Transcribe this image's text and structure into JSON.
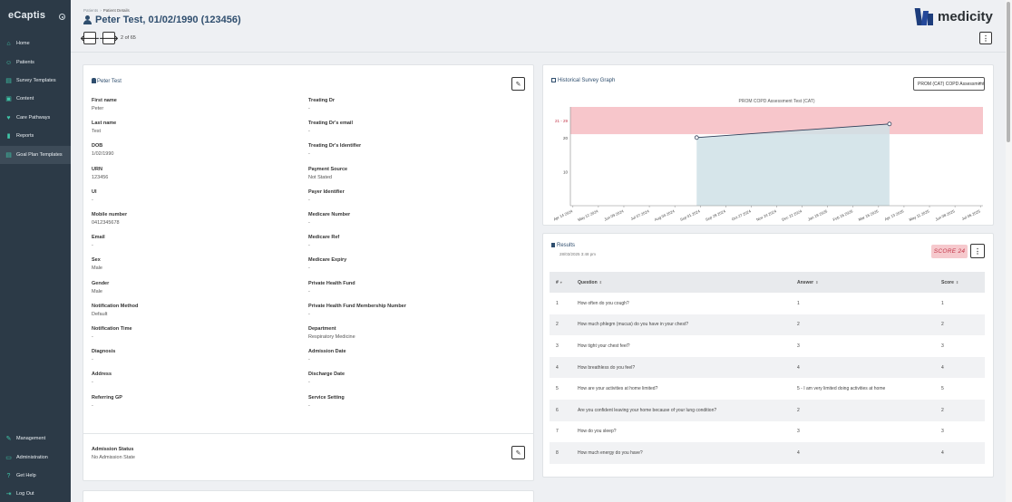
{
  "sidebar": {
    "brand": "eCaptis",
    "items": [
      {
        "label": "Home",
        "icon": "home-icon",
        "glyph": "⌂"
      },
      {
        "label": "Patients",
        "icon": "users-icon",
        "glyph": "☺"
      },
      {
        "label": "Survey Templates",
        "icon": "document-icon",
        "glyph": "▤"
      },
      {
        "label": "Content",
        "icon": "content-icon",
        "glyph": "▣"
      },
      {
        "label": "Care Pathways",
        "icon": "heart-icon",
        "glyph": "♥"
      },
      {
        "label": "Reports",
        "icon": "bar-chart-icon",
        "glyph": "▮"
      },
      {
        "label": "Goal Plan Templates",
        "icon": "goal-plan-icon",
        "glyph": "▤"
      },
      {
        "label": "Management",
        "icon": "wrench-icon",
        "glyph": "✎"
      },
      {
        "label": "Administration",
        "icon": "admin-icon",
        "glyph": "▭"
      },
      {
        "label": "Get Help",
        "icon": "help-icon",
        "glyph": "?"
      },
      {
        "label": "Log Out",
        "icon": "logout-icon",
        "glyph": "⇥"
      }
    ]
  },
  "header": {
    "breadcrumb": [
      "Patients",
      "Patient Details"
    ],
    "title": "Peter Test, 01/02/1990 (123456)",
    "pager": "2 of 65",
    "prev_glyph": "🡐",
    "next_glyph": "🡒",
    "logo_text": "medicity",
    "menu_glyph": "⋮"
  },
  "patient": {
    "title": "Peter Test",
    "left": [
      {
        "label": "First name",
        "value": "Peter"
      },
      {
        "label": "Last name",
        "value": "Test"
      },
      {
        "label": "DOB",
        "value": "1/02/1990"
      },
      {
        "label": "URN",
        "value": "123456"
      },
      {
        "label": "UI",
        "value": "-"
      },
      {
        "label": "Mobile number",
        "value": "0412345678"
      },
      {
        "label": "Email",
        "value": "-"
      },
      {
        "label": "Sex",
        "value": "Male"
      },
      {
        "label": "Gender",
        "value": "Male"
      },
      {
        "label": "Notification Method",
        "value": "Default"
      },
      {
        "label": "Notification Time",
        "value": "-"
      },
      {
        "label": "Diagnosis",
        "value": "-"
      },
      {
        "label": "Address",
        "value": "-"
      },
      {
        "label": "Referring GP",
        "value": "-"
      }
    ],
    "right": [
      {
        "label": "Treating Dr",
        "value": "-"
      },
      {
        "label": "Treating Dr's email",
        "value": "-"
      },
      {
        "label": "Treating Dr's Identifier",
        "value": "-"
      },
      {
        "label": "Payment Source",
        "value": "Not Stated"
      },
      {
        "label": "Payer Identifier",
        "value": "-"
      },
      {
        "label": "Medicare Number",
        "value": "-"
      },
      {
        "label": "Medicare Ref",
        "value": "-"
      },
      {
        "label": "Medicare Expiry",
        "value": "-"
      },
      {
        "label": "Private Health Fund",
        "value": "-"
      },
      {
        "label": "Private Health Fund Membership Number",
        "value": "-"
      },
      {
        "label": "Department",
        "value": "Respiratory Medicine"
      },
      {
        "label": "Admission Date",
        "value": "-"
      },
      {
        "label": "Discharge Date",
        "value": "-"
      },
      {
        "label": "Service Setting",
        "value": "-"
      }
    ],
    "admission_status_label": "Admission Status",
    "admission_status_value": "No Admission State",
    "edit_glyph": "✎"
  },
  "graph": {
    "title": "Historical Survey Graph",
    "select_value": "PROM (CAT) COPD Assessment Test"
  },
  "chart_data": {
    "type": "line",
    "title": "PROM COPD Assessment Test (CAT)",
    "x_ticks": [
      "Apr 14 2024",
      "May 12 2024",
      "Jun 09 2024",
      "Jul 07 2024",
      "Aug 04 2024",
      "Sep 01 2024",
      "Sep 29 2024",
      "Oct 27 2024",
      "Nov 24 2024",
      "Dec 22 2024",
      "Jan 19 2025",
      "Feb 16 2025",
      "Mar 16 2025",
      "Apr 13 2025",
      "May 11 2025",
      "Jun 08 2025",
      "Jul 06 2025"
    ],
    "points": [
      {
        "x": "2024-08-28",
        "y": 20
      },
      {
        "x": "2025-03-28",
        "y": 24
      }
    ],
    "y_ticks": [
      10,
      20
    ],
    "band_label": "21 - 29",
    "band": [
      21,
      29
    ],
    "ylim": [
      0,
      29
    ],
    "colors": {
      "band": "#f7c6cb",
      "fill": "#cfe0e6",
      "line": "#2f3e58"
    }
  },
  "results": {
    "title": "Results",
    "date": "28/03/2025 3:48 pm",
    "score": "SCORE 24",
    "columns": [
      "#",
      "Question",
      "Answer",
      "Score"
    ],
    "rows": [
      {
        "n": "1",
        "q": "How often do you cough?",
        "a": "1",
        "s": "1"
      },
      {
        "n": "2",
        "q": "How much phlegm (mucus) do you have in your chest?",
        "a": "2",
        "s": "2"
      },
      {
        "n": "3",
        "q": "How tight your chest feel?",
        "a": "3",
        "s": "3"
      },
      {
        "n": "4",
        "q": "How breathless do you feel?",
        "a": "4",
        "s": "4"
      },
      {
        "n": "5",
        "q": "How are your activities at home limited?",
        "a": "5 - I am very limited doing activities at home",
        "s": "5"
      },
      {
        "n": "6",
        "q": "Are you confident leaving your home because of your lung condition?",
        "a": "2",
        "s": "2"
      },
      {
        "n": "7",
        "q": "How do you sleep?",
        "a": "3",
        "s": "3"
      },
      {
        "n": "8",
        "q": "How much energy do you have?",
        "a": "4",
        "s": "4"
      }
    ]
  }
}
